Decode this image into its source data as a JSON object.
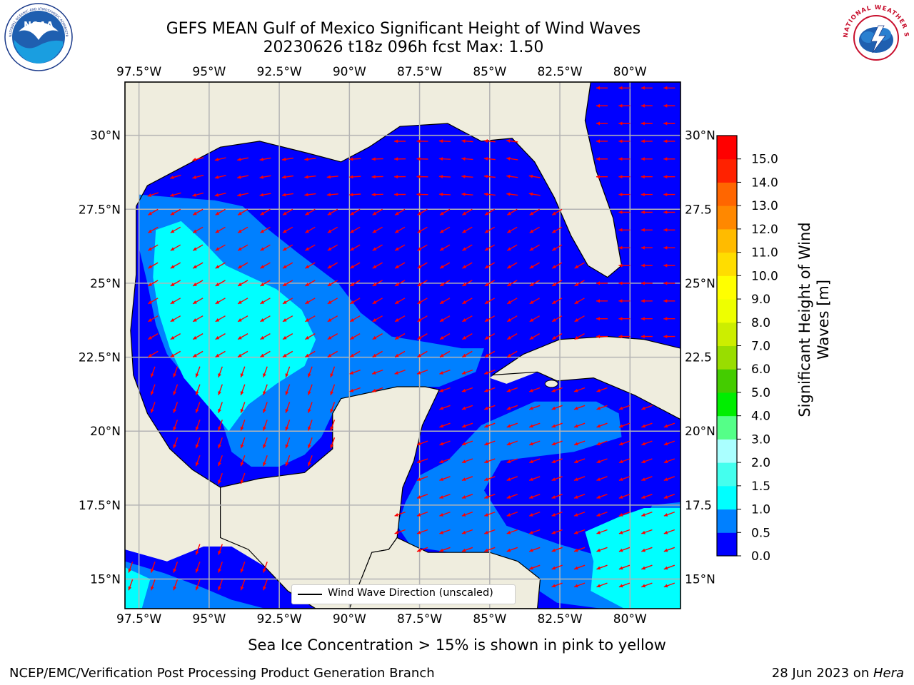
{
  "header": {
    "title_line1": "GEFS MEAN Gulf of Mexico Significant Height of Wind Waves",
    "title_line2": "20230626 t18z 096h fcst   Max: 1.50"
  },
  "logos": {
    "left": {
      "name": "NOAA",
      "ring_text": "NATIONAL OCEANIC AND ATMOSPHERIC ADMINISTRATION · U.S. DEPARTMENT OF COMMERCE"
    },
    "right": {
      "name": "NATIONAL WEATHER SERVICE"
    }
  },
  "map": {
    "lon_labels": [
      "97.5°W",
      "95°W",
      "92.5°W",
      "90°W",
      "87.5°W",
      "85°W",
      "82.5°W",
      "80°W"
    ],
    "lat_labels_left": [
      "30°N",
      "27.5°N",
      "25°N",
      "22.5°N",
      "20°N",
      "17.5°N",
      "15°N"
    ],
    "lat_labels_right": [
      "30°N",
      "27.5",
      "25°N",
      "22.5",
      "20°N",
      "17.5",
      "15°N"
    ],
    "extent": {
      "lon_min": -98,
      "lon_max": -78.2,
      "lat_min": 14,
      "lat_max": 31.8
    },
    "legend_label": "Wind Wave Direction (unscaled)",
    "colors": {
      "land": "#efedde",
      "grid": "#b4b4b4",
      "arrow": "#ff0000"
    }
  },
  "colorbar": {
    "title_line1": "Significant Height of Wind",
    "title_line2": "Waves [m]",
    "tick_labels": [
      "0.0",
      "0.5",
      "1.0",
      "1.5",
      "2.0",
      "3.0",
      "4.0",
      "5.0",
      "6.0",
      "7.0",
      "8.0",
      "9.0",
      "10.0",
      "11.0",
      "12.0",
      "13.0",
      "14.0",
      "15.0"
    ],
    "colors": [
      "#0000ff",
      "#0080ff",
      "#00ffff",
      "#44ffee",
      "#aaffff",
      "#55ff88",
      "#00ee00",
      "#44cc00",
      "#99dd00",
      "#ccee00",
      "#eeff00",
      "#ffff00",
      "#ffdd00",
      "#ffbb00",
      "#ff8800",
      "#ff6600",
      "#ff2200",
      "#ff0000"
    ]
  },
  "notes": {
    "sea_ice": "Sea Ice Concentration > 15% is shown in pink to yellow"
  },
  "footer": {
    "left": "NCEP/EMC/Verification Post Processing Product Generation Branch",
    "right_date": "28 Jun 2023 on ",
    "right_host": "Hera"
  }
}
